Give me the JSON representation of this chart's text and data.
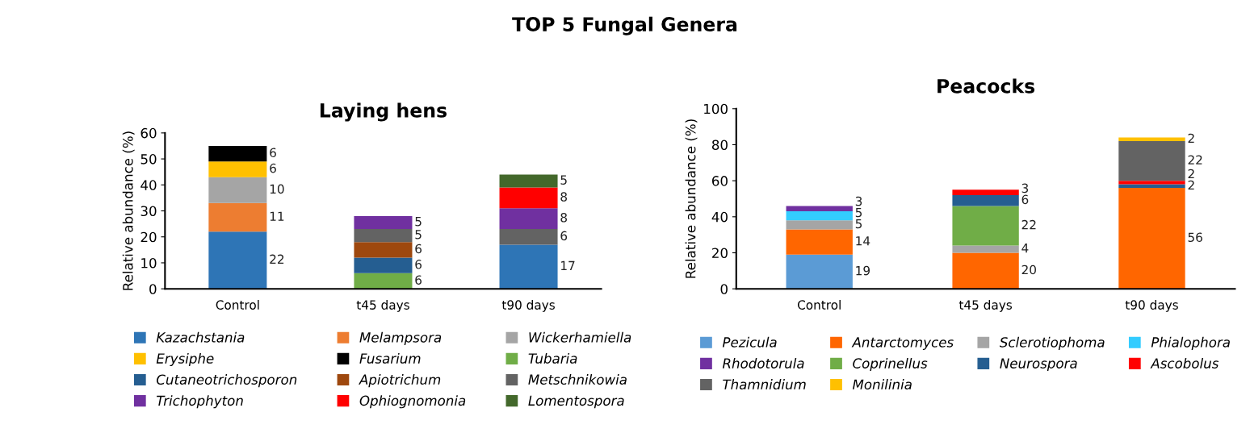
{
  "chart_data": [
    {
      "type": "bar",
      "stacked": true,
      "title": "Laying hens",
      "ylabel": "Relative abundance (%)",
      "annotations": [
        "TOP 5 Fungal Genera"
      ],
      "categories": [
        "Control",
        "t45 days",
        "t90 days"
      ],
      "ylim": [
        0,
        60
      ],
      "yticks": [
        0,
        10,
        20,
        30,
        40,
        50,
        60
      ],
      "data_labels": true,
      "legend": "bottom",
      "grid": false,
      "series": [
        {
          "name": "Kazachstania",
          "color": "#2e75b6",
          "values": [
            22,
            null,
            17
          ]
        },
        {
          "name": "Melampsora",
          "color": "#ed7d31",
          "values": [
            11,
            null,
            null
          ]
        },
        {
          "name": "Wickerhamiella",
          "color": "#a5a5a5",
          "values": [
            10,
            null,
            null
          ]
        },
        {
          "name": "Erysiphe",
          "color": "#ffc000",
          "values": [
            6,
            null,
            null
          ]
        },
        {
          "name": "Fusarium",
          "color": "#000000",
          "values": [
            6,
            null,
            null
          ]
        },
        {
          "name": "Tubaria",
          "color": "#70ad47",
          "values": [
            null,
            6,
            null
          ]
        },
        {
          "name": "Cutaneotrichosporon",
          "color": "#255e91",
          "values": [
            null,
            6,
            null
          ]
        },
        {
          "name": "Apiotrichum",
          "color": "#9e480e",
          "values": [
            null,
            6,
            null
          ]
        },
        {
          "name": "Metschnikowia",
          "color": "#636363",
          "values": [
            null,
            5,
            6
          ]
        },
        {
          "name": "Trichophyton",
          "color": "#7030a0",
          "values": [
            null,
            5,
            8
          ]
        },
        {
          "name": "Ophiognomonia",
          "color": "#ff0000",
          "values": [
            null,
            null,
            8
          ]
        },
        {
          "name": "Lomentospora",
          "color": "#43682b",
          "values": [
            null,
            null,
            5
          ]
        }
      ]
    },
    {
      "type": "bar",
      "stacked": true,
      "title": "Peacocks",
      "ylabel": "Relative abundance (%)",
      "categories": [
        "Control",
        "t45 days",
        "t90 days"
      ],
      "ylim": [
        0,
        100
      ],
      "yticks": [
        0,
        20,
        40,
        60,
        80,
        100
      ],
      "data_labels": true,
      "legend": "bottom",
      "grid": false,
      "series": [
        {
          "name": "Pezicula",
          "color": "#5b9bd5",
          "values": [
            19,
            null,
            null
          ]
        },
        {
          "name": "Antarctomyces",
          "color": "#ff6600",
          "values": [
            14,
            20,
            56
          ]
        },
        {
          "name": "Sclerotiophoma",
          "color": "#a5a5a5",
          "values": [
            5,
            4,
            null
          ]
        },
        {
          "name": "Phialophora",
          "color": "#33ccff",
          "values": [
            5,
            null,
            null
          ]
        },
        {
          "name": "Rhodotorula",
          "color": "#7030a0",
          "values": [
            3,
            null,
            null
          ]
        },
        {
          "name": "Coprinellus",
          "color": "#70ad47",
          "values": [
            null,
            22,
            null
          ]
        },
        {
          "name": "Neurospora",
          "color": "#255e91",
          "values": [
            null,
            6,
            2
          ]
        },
        {
          "name": "Ascobolus",
          "color": "#ff0000",
          "values": [
            null,
            3,
            2
          ]
        },
        {
          "name": "Thamnidium",
          "color": "#636363",
          "values": [
            null,
            null,
            22
          ]
        },
        {
          "name": "Monilinia",
          "color": "#ffc000",
          "values": [
            null,
            null,
            2
          ]
        }
      ]
    }
  ]
}
